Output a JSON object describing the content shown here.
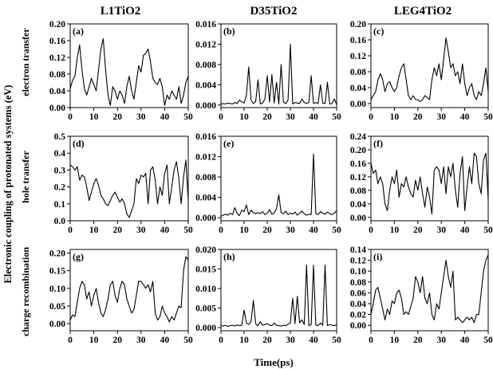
{
  "figure": {
    "column_titles": [
      "L1TiO2",
      "D35TiO2",
      "LEG4TiO2"
    ],
    "row_labels": [
      "electron transfer",
      "hole transfer",
      "charge recombination"
    ],
    "y_super_label": "Electronic coupling of protonated systems (eV)",
    "x_label": "Time(ps)"
  },
  "chart_data": [
    {
      "type": "line",
      "panel": "(a)",
      "column": "L1TiO2",
      "row": "electron transfer",
      "xlim": [
        0,
        50
      ],
      "ylim": [
        0,
        0.2
      ],
      "xticks": [
        "0",
        "10",
        "20",
        "30",
        "40",
        "50"
      ],
      "yticks": [
        "0.00",
        "0.04",
        "0.08",
        "0.12",
        "0.16",
        "0.20"
      ],
      "x": [
        0,
        1,
        2,
        3,
        4,
        5,
        6,
        7,
        8,
        9,
        10,
        11,
        12,
        13,
        14,
        15,
        16,
        17,
        18,
        19,
        20,
        21,
        22,
        23,
        24,
        25,
        26,
        27,
        28,
        29,
        30,
        31,
        32,
        33,
        34,
        35,
        36,
        37,
        38,
        39,
        40,
        41,
        42,
        43,
        44,
        45,
        46,
        47,
        48,
        49,
        50
      ],
      "y": [
        0.045,
        0.065,
        0.075,
        0.12,
        0.15,
        0.09,
        0.045,
        0.03,
        0.05,
        0.07,
        0.055,
        0.04,
        0.09,
        0.14,
        0.165,
        0.09,
        0.03,
        0.005,
        0.05,
        0.04,
        0.02,
        0.04,
        0.03,
        0.01,
        0.05,
        0.075,
        0.04,
        0.02,
        0.06,
        0.1,
        0.085,
        0.125,
        0.13,
        0.14,
        0.11,
        0.07,
        0.06,
        0.055,
        0.07,
        0.05,
        0.005,
        0.03,
        0.02,
        0.04,
        0.03,
        0.02,
        0.05,
        0.01,
        0.03,
        0.06,
        0.075
      ]
    },
    {
      "type": "line",
      "panel": "(d)",
      "column": "D35TiO2",
      "row": "electron transfer",
      "xlim": [
        0,
        50
      ],
      "ylim": [
        0,
        0.5
      ],
      "xticks": [
        "0",
        "10",
        "20",
        "30",
        "40",
        "50"
      ],
      "yticks": [
        "0.0",
        "0.1",
        "0.2",
        "0.3",
        "0.4",
        "0.5"
      ],
      "x": [
        0,
        1,
        2,
        3,
        4,
        5,
        6,
        7,
        8,
        9,
        10,
        11,
        12,
        13,
        14,
        15,
        16,
        17,
        18,
        19,
        20,
        21,
        22,
        23,
        24,
        25,
        26,
        27,
        28,
        29,
        30,
        31,
        32,
        33,
        34,
        35,
        36,
        37,
        38,
        39,
        40,
        41,
        42,
        43,
        44,
        45,
        46,
        47,
        48,
        49,
        50
      ],
      "y": [
        0.33,
        0.32,
        0.3,
        0.32,
        0.24,
        0.27,
        0.26,
        0.2,
        0.12,
        0.17,
        0.22,
        0.25,
        0.21,
        0.15,
        0.13,
        0.1,
        0.09,
        0.12,
        0.15,
        0.17,
        0.14,
        0.11,
        0.13,
        0.1,
        0.04,
        0.02,
        0.06,
        0.1,
        0.25,
        0.22,
        0.27,
        0.26,
        0.28,
        0.1,
        0.3,
        0.32,
        0.24,
        0.1,
        0.2,
        0.15,
        0.28,
        0.33,
        0.1,
        0.2,
        0.3,
        0.35,
        0.25,
        0.1,
        0.26,
        0.36,
        0.12
      ]
    },
    {
      "type": "line",
      "panel": "(g)",
      "column": "LEG4TiO2",
      "row": "electron transfer",
      "xlim": [
        0,
        50
      ],
      "ylim": [
        -0.02,
        0.21
      ],
      "xticks": [
        "0",
        "10",
        "20",
        "30",
        "40",
        "50"
      ],
      "yticks": [
        "0.00",
        "0.05",
        "0.10",
        "0.15",
        "0.20"
      ],
      "x": [
        0,
        1,
        2,
        3,
        4,
        5,
        6,
        7,
        8,
        9,
        10,
        11,
        12,
        13,
        14,
        15,
        16,
        17,
        18,
        19,
        20,
        21,
        22,
        23,
        24,
        25,
        26,
        27,
        28,
        29,
        30,
        31,
        32,
        33,
        34,
        35,
        36,
        37,
        38,
        39,
        40,
        41,
        42,
        43,
        44,
        45,
        46,
        47,
        48,
        49,
        50
      ],
      "y": [
        0.01,
        0.025,
        0.02,
        0.06,
        0.1,
        0.12,
        0.11,
        0.07,
        0.09,
        0.05,
        0.08,
        0.1,
        0.06,
        0.03,
        0.02,
        0.04,
        0.07,
        0.11,
        0.12,
        0.08,
        0.06,
        0.1,
        0.12,
        0.11,
        0.07,
        0.05,
        0.03,
        0.04,
        0.08,
        0.12,
        0.12,
        0.11,
        0.1,
        0.11,
        0.09,
        0.12,
        0.03,
        0.01,
        0.02,
        0.05,
        0.03,
        0.02,
        0.005,
        0.02,
        0.01,
        0.03,
        0.05,
        0.045,
        0.15,
        0.19,
        0.18
      ]
    },
    {
      "type": "line",
      "panel": "(b)",
      "column": "L1TiO2",
      "row": "hole transfer",
      "xlim": [
        0,
        50
      ],
      "ylim": [
        -0.0005,
        0.016
      ],
      "xticks": [
        "0",
        "10",
        "20",
        "30",
        "40",
        "50"
      ],
      "yticks": [
        "0.000",
        "0.004",
        "0.008",
        "0.012",
        "0.016"
      ],
      "x": [
        0,
        1,
        2,
        3,
        4,
        5,
        6,
        7,
        8,
        9,
        10,
        11,
        12,
        13,
        14,
        15,
        16,
        17,
        18,
        19,
        20,
        21,
        22,
        23,
        24,
        25,
        26,
        27,
        28,
        29,
        30,
        31,
        32,
        33,
        34,
        35,
        36,
        37,
        38,
        39,
        40,
        41,
        42,
        43,
        44,
        45,
        46,
        47,
        48,
        49,
        50
      ],
      "y": [
        0.0002,
        0.0003,
        0.0002,
        0.0004,
        0.0003,
        0.0002,
        0.0005,
        0.0003,
        0.001,
        0.0006,
        0.0004,
        0.002,
        0.0075,
        0.001,
        0.0003,
        0.0007,
        0.005,
        0.0002,
        0.0004,
        0.0012,
        0.0058,
        0.0006,
        0.006,
        0.0004,
        0.0045,
        0.0002,
        0.008,
        0.0006,
        0.0003,
        0.001,
        0.012,
        0.0002,
        0.0005,
        0.0004,
        0.0003,
        0.0012,
        0.0005,
        0.0003,
        0.0005,
        0.0058,
        0.0003,
        0.0005,
        0.0003,
        0.004,
        0.0004,
        0.0003,
        0.0045,
        0.0002,
        0.0003,
        0.0012,
        0.0001
      ]
    },
    {
      "type": "line",
      "panel": "(e)",
      "column": "D35TiO2",
      "row": "hole transfer",
      "xlim": [
        0,
        50
      ],
      "ylim": [
        -0.0006,
        0.016
      ],
      "xticks": [
        "0",
        "10",
        "20",
        "30",
        "40",
        "50"
      ],
      "yticks": [
        "0.000",
        "0.004",
        "0.008",
        "0.012",
        "0.016"
      ],
      "x": [
        0,
        1,
        2,
        3,
        4,
        5,
        6,
        7,
        8,
        9,
        10,
        11,
        12,
        13,
        14,
        15,
        16,
        17,
        18,
        19,
        20,
        21,
        22,
        23,
        24,
        25,
        26,
        27,
        28,
        29,
        30,
        31,
        32,
        33,
        34,
        35,
        36,
        37,
        38,
        39,
        40,
        41,
        42,
        43,
        44,
        45,
        46,
        47,
        48,
        49,
        50
      ],
      "y": [
        0.0003,
        0.0005,
        0.0007,
        0.0005,
        0.0009,
        0.0006,
        0.002,
        0.0008,
        0.0004,
        0.0015,
        0.0012,
        0.0025,
        0.0006,
        0.0015,
        0.001,
        0.0008,
        0.001,
        0.0008,
        0.0012,
        0.0006,
        0.0009,
        0.0016,
        0.0007,
        0.0009,
        0.0018,
        0.0045,
        0.001,
        0.0008,
        0.0013,
        0.0006,
        0.0009,
        0.0007,
        0.0011,
        0.0005,
        0.0009,
        0.0013,
        0.0008,
        0.0005,
        0.0007,
        0.0006,
        0.0125,
        0.0008,
        0.0006,
        0.0012,
        0.0009,
        0.0007,
        0.0011,
        0.0008,
        0.0006,
        0.0009,
        0.0014
      ]
    },
    {
      "type": "line",
      "panel": "(h)",
      "column": "LEG4TiO2",
      "row": "hole transfer",
      "xlim": [
        0,
        50
      ],
      "ylim": [
        -0.0008,
        0.02
      ],
      "xticks": [
        "0",
        "10",
        "20",
        "30",
        "40",
        "50"
      ],
      "yticks": [
        "0.000",
        "0.005",
        "0.010",
        "0.015",
        "0.020"
      ],
      "x": [
        0,
        1,
        2,
        3,
        4,
        5,
        6,
        7,
        8,
        9,
        10,
        11,
        12,
        13,
        14,
        15,
        16,
        17,
        18,
        19,
        20,
        21,
        22,
        23,
        24,
        25,
        26,
        27,
        28,
        29,
        30,
        31,
        32,
        33,
        34,
        35,
        36,
        37,
        38,
        39,
        40,
        41,
        42,
        43,
        44,
        45,
        46,
        47,
        48,
        49,
        50
      ],
      "y": [
        0.0005,
        0.0004,
        0.0006,
        0.0003,
        0.0005,
        0.0006,
        0.0004,
        0.0007,
        0.0005,
        0.0006,
        0.0045,
        0.0012,
        0.0008,
        0.0015,
        0.007,
        0.001,
        0.0005,
        0.0015,
        0.0006,
        0.0008,
        0.001,
        0.0006,
        0.0005,
        0.0012,
        0.0006,
        0.0005,
        0.0004,
        0.0006,
        0.0005,
        0.0009,
        0.0012,
        0.0075,
        0.001,
        0.008,
        0.0012,
        0.002,
        0.0008,
        0.016,
        0.0005,
        0.0008,
        0.016,
        0.0006,
        0.0005,
        0.0012,
        0.0006,
        0.016,
        0.0005,
        0.0008,
        0.0006,
        0.0005,
        0.0008
      ]
    },
    {
      "type": "line",
      "panel": "(c)",
      "column": "L1TiO2",
      "row": "charge recombination",
      "xlim": [
        0,
        50
      ],
      "ylim": [
        -0.01,
        0.2
      ],
      "xticks": [
        "0",
        "10",
        "20",
        "30",
        "40",
        "50"
      ],
      "yticks": [
        "0.00",
        "0.04",
        "0.08",
        "0.12",
        "0.16",
        "0.20"
      ],
      "x": [
        0,
        1,
        2,
        3,
        4,
        5,
        6,
        7,
        8,
        9,
        10,
        11,
        12,
        13,
        14,
        15,
        16,
        17,
        18,
        19,
        20,
        21,
        22,
        23,
        24,
        25,
        26,
        27,
        28,
        29,
        30,
        31,
        32,
        33,
        34,
        35,
        36,
        37,
        38,
        39,
        40,
        41,
        42,
        43,
        44,
        45,
        46,
        47,
        48,
        49,
        50
      ],
      "y": [
        0.01,
        0.02,
        0.03,
        0.06,
        0.075,
        0.06,
        0.03,
        0.05,
        0.055,
        0.04,
        0.03,
        0.04,
        0.07,
        0.09,
        0.1,
        0.06,
        0.02,
        0.01,
        0.02,
        0.01,
        0.01,
        0.005,
        0.01,
        0.02,
        0.015,
        0.01,
        0.06,
        0.09,
        0.07,
        0.1,
        0.06,
        0.11,
        0.165,
        0.13,
        0.09,
        0.1,
        0.07,
        0.08,
        0.05,
        0.1,
        0.05,
        0.02,
        0.04,
        0.05,
        0.02,
        0.01,
        0.03,
        0.02,
        0.05,
        0.09,
        0.03
      ]
    },
    {
      "type": "line",
      "panel": "(f)",
      "column": "D35TiO2",
      "row": "charge recombination",
      "xlim": [
        0,
        50
      ],
      "ylim": [
        -0.01,
        0.24
      ],
      "xticks": [
        "0",
        "10",
        "20",
        "30",
        "40",
        "50"
      ],
      "yticks": [
        "0.00",
        "0.04",
        "0.08",
        "0.12",
        "0.16",
        "0.20",
        "0.24"
      ],
      "x": [
        0,
        1,
        2,
        3,
        4,
        5,
        6,
        7,
        8,
        9,
        10,
        11,
        12,
        13,
        14,
        15,
        16,
        17,
        18,
        19,
        20,
        21,
        22,
        23,
        24,
        25,
        26,
        27,
        28,
        29,
        30,
        31,
        32,
        33,
        34,
        35,
        36,
        37,
        38,
        39,
        40,
        41,
        42,
        43,
        44,
        45,
        46,
        47,
        48,
        49,
        50
      ],
      "y": [
        0.16,
        0.13,
        0.14,
        0.1,
        0.12,
        0.1,
        0.04,
        0.02,
        0.08,
        0.12,
        0.1,
        0.14,
        0.06,
        0.1,
        0.09,
        0.12,
        0.09,
        0.07,
        0.06,
        0.11,
        0.08,
        0.12,
        0.07,
        0.03,
        0.09,
        0.06,
        0.01,
        0.14,
        0.15,
        0.14,
        0.1,
        0.15,
        0.07,
        0.15,
        0.12,
        0.16,
        0.08,
        0.03,
        0.13,
        0.18,
        0.02,
        0.09,
        0.15,
        0.1,
        0.19,
        0.18,
        0.1,
        0.07,
        0.17,
        0.19,
        0.05
      ]
    },
    {
      "type": "line",
      "panel": "(i)",
      "column": "LEG4TiO2",
      "row": "charge recombination",
      "xlim": [
        0,
        50
      ],
      "ylim": [
        -0.01,
        0.14
      ],
      "xticks": [
        "0",
        "10",
        "20",
        "30",
        "40",
        "50"
      ],
      "yticks": [
        "0.00",
        "0.02",
        "0.04",
        "0.06",
        "0.08",
        "0.10",
        "0.12",
        "0.14"
      ],
      "x": [
        0,
        1,
        2,
        3,
        4,
        5,
        6,
        7,
        8,
        9,
        10,
        11,
        12,
        13,
        14,
        15,
        16,
        17,
        18,
        19,
        20,
        21,
        22,
        23,
        24,
        25,
        26,
        27,
        28,
        29,
        30,
        31,
        32,
        33,
        34,
        35,
        36,
        37,
        38,
        39,
        40,
        41,
        42,
        43,
        44,
        45,
        46,
        47,
        48,
        49,
        50
      ],
      "y": [
        0.02,
        0.04,
        0.065,
        0.07,
        0.05,
        0.03,
        0.01,
        0.03,
        0.02,
        0.045,
        0.04,
        0.06,
        0.065,
        0.05,
        0.02,
        0.025,
        0.02,
        0.035,
        0.05,
        0.09,
        0.08,
        0.06,
        0.09,
        0.05,
        0.04,
        0.06,
        0.02,
        0.01,
        0.04,
        0.03,
        0.06,
        0.09,
        0.12,
        0.09,
        0.07,
        0.1,
        0.01,
        0.015,
        0.01,
        0.005,
        0.01,
        0.015,
        0.01,
        0.015,
        0.005,
        0.02,
        0.02,
        0.06,
        0.1,
        0.12,
        0.13
      ]
    }
  ]
}
